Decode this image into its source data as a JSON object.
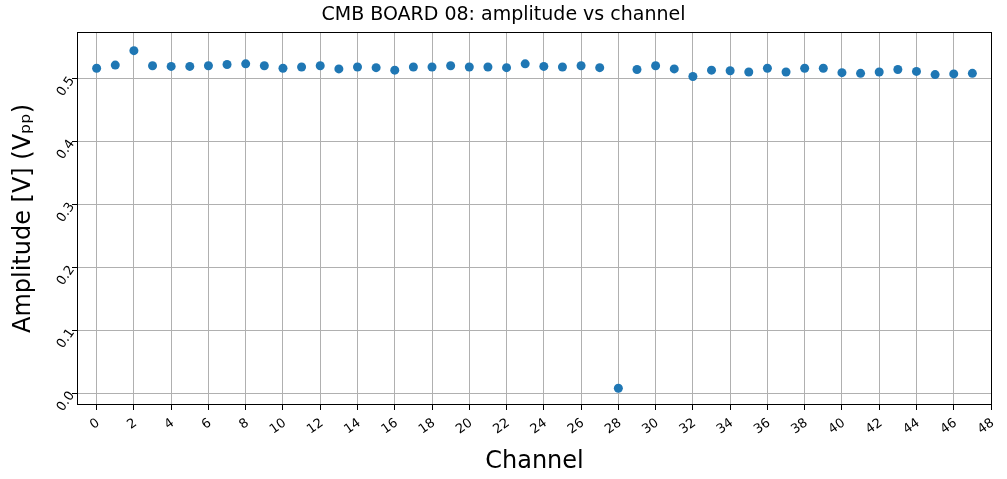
{
  "chart_data": {
    "type": "scatter",
    "title": "CMB BOARD 08: amplitude vs channel",
    "xlabel": "Channel",
    "ylabel": "Amplitude [V] (Vₚₚ)",
    "x": [
      0,
      1,
      2,
      3,
      4,
      5,
      6,
      7,
      8,
      9,
      10,
      11,
      12,
      13,
      14,
      15,
      16,
      17,
      18,
      19,
      20,
      21,
      22,
      23,
      24,
      25,
      26,
      27,
      28,
      29,
      30,
      31,
      32,
      33,
      34,
      35,
      36,
      37,
      38,
      39,
      40,
      41,
      42,
      43,
      44,
      45,
      46,
      47
    ],
    "series": [
      {
        "color": "#1f77b4",
        "values": [
          0.516,
          0.521,
          0.544,
          0.52,
          0.519,
          0.519,
          0.52,
          0.522,
          0.523,
          0.52,
          0.516,
          0.518,
          0.52,
          0.515,
          0.518,
          0.517,
          0.513,
          0.518,
          0.518,
          0.52,
          0.518,
          0.518,
          0.517,
          0.523,
          0.519,
          0.518,
          0.52,
          0.517,
          0.008,
          0.514,
          0.52,
          0.515,
          0.503,
          0.513,
          0.512,
          0.51,
          0.516,
          0.51,
          0.516,
          0.516,
          0.509,
          0.508,
          0.51,
          0.514,
          0.511,
          0.506,
          0.507,
          0.508
        ]
      }
    ],
    "xlim": [
      -1,
      48
    ],
    "xticks": [
      0,
      2,
      4,
      6,
      8,
      10,
      12,
      14,
      16,
      18,
      20,
      22,
      24,
      26,
      28,
      30,
      32,
      34,
      36,
      38,
      40,
      42,
      44,
      46,
      48
    ],
    "ylim": [
      -0.017,
      0.572
    ],
    "yticks": [
      {
        "value": 0,
        "label": "0.0"
      },
      0.1,
      0.2,
      0.3,
      0.4,
      0.5
    ],
    "grid": true,
    "marker": "circle"
  }
}
